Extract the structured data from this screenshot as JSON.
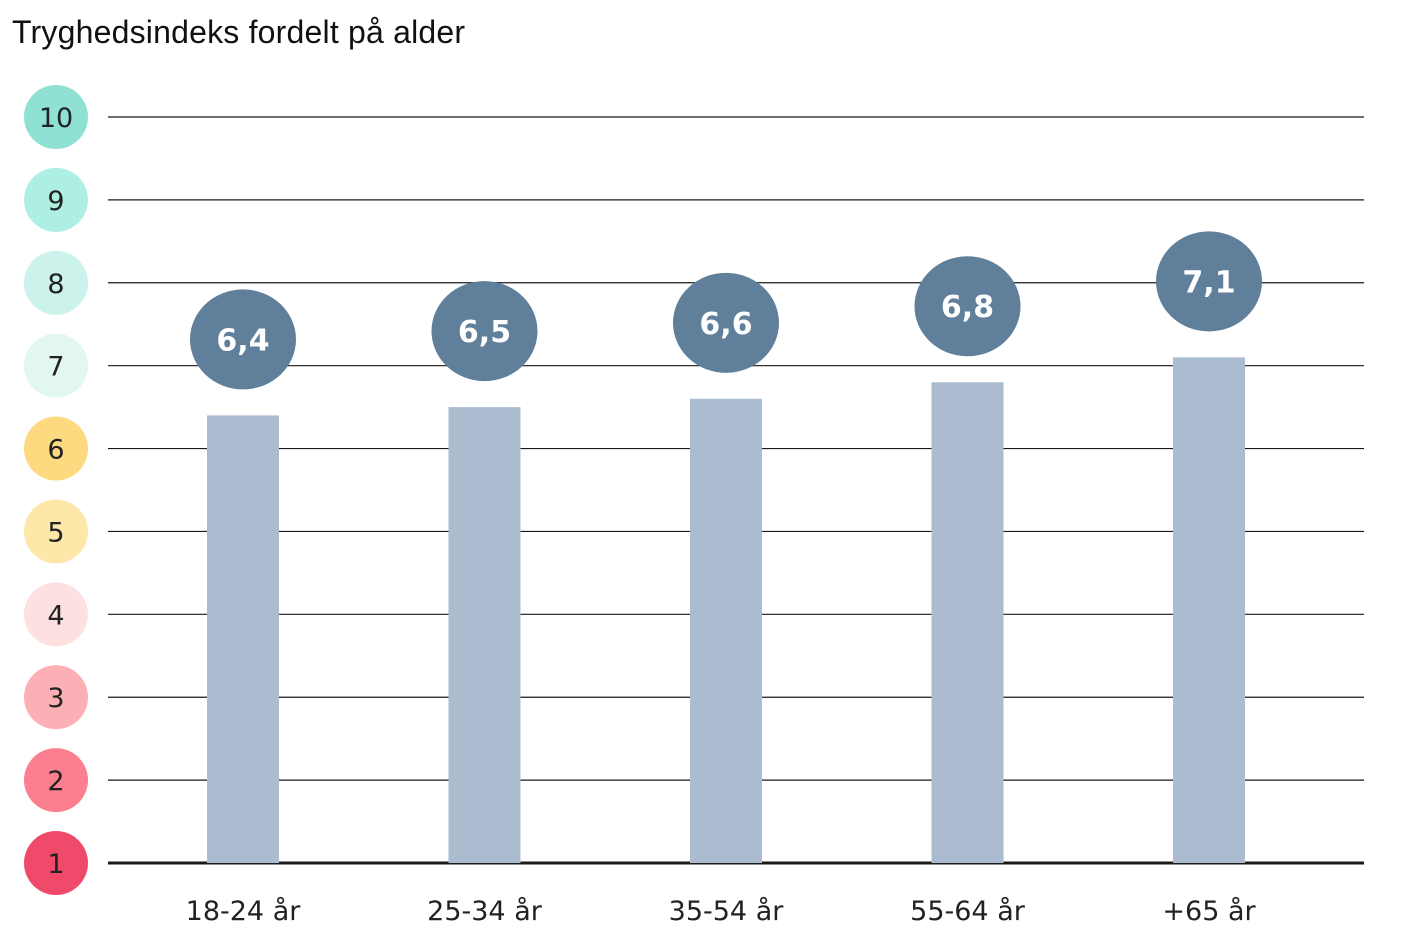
{
  "chart_data": {
    "type": "bar",
    "title": "Tryghedsindeks fordelt på alder",
    "categories": [
      "18-24 år",
      "25-34 år",
      "35-54 år",
      "55-64 år",
      "+65 år"
    ],
    "values": [
      6.4,
      6.5,
      6.6,
      6.8,
      7.1
    ],
    "value_labels": [
      "6,4",
      "6,5",
      "6,6",
      "6,8",
      "7,1"
    ],
    "y_ticks": [
      1,
      2,
      3,
      4,
      5,
      6,
      7,
      8,
      9,
      10
    ],
    "y_tick_colors": [
      "#f04a6a",
      "#fb7f8f",
      "#fcafb5",
      "#fde0e0",
      "#fde7a9",
      "#fdd97f",
      "#e3f7f1",
      "#ccf2ec",
      "#aeefe3",
      "#8fe1d4"
    ],
    "ylim": [
      1,
      10
    ],
    "grid": true,
    "bar_color": "#abbcd0",
    "label_bubble_color": "#5f7f9a",
    "xlabel": "",
    "ylabel": ""
  }
}
